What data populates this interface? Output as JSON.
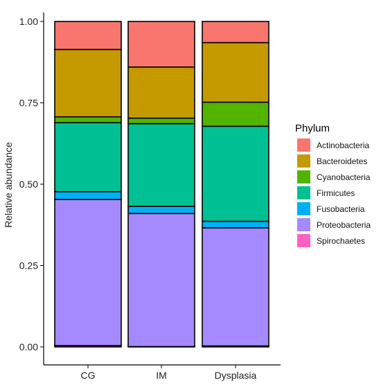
{
  "chart_data": {
    "type": "bar",
    "stacked": true,
    "categories": [
      "CG",
      "IM",
      "Dysplasia"
    ],
    "ylabel": "Relative abundance",
    "xlabel": "",
    "ylim": [
      0,
      1
    ],
    "yticks": [
      "0.00",
      "0.25",
      "0.50",
      "0.75",
      "1.00"
    ],
    "legend_title": "Phylum",
    "legend_position": "right",
    "grid": false,
    "series": [
      {
        "name": "Spirochaetes",
        "color": "#FF61C3",
        "values": [
          0.004,
          0.001,
          0.003
        ]
      },
      {
        "name": "Proteobacteria",
        "color": "#A58AFF",
        "values": [
          0.449,
          0.409,
          0.363
        ]
      },
      {
        "name": "Fusobacteria",
        "color": "#00B0F6",
        "values": [
          0.024,
          0.022,
          0.02
        ]
      },
      {
        "name": "Firmicutes",
        "color": "#00C094",
        "values": [
          0.212,
          0.254,
          0.292
        ]
      },
      {
        "name": "Cyanobacteria",
        "color": "#53B400",
        "values": [
          0.018,
          0.017,
          0.074
        ]
      },
      {
        "name": "Bacteroidetes",
        "color": "#C49A00",
        "values": [
          0.207,
          0.157,
          0.183
        ]
      },
      {
        "name": "Actinobacteria",
        "color": "#F8766D",
        "values": [
          0.086,
          0.14,
          0.065
        ]
      }
    ],
    "legend_order": [
      "Actinobacteria",
      "Bacteroidetes",
      "Cyanobacteria",
      "Firmicutes",
      "Fusobacteria",
      "Proteobacteria",
      "Spirochaetes"
    ]
  }
}
